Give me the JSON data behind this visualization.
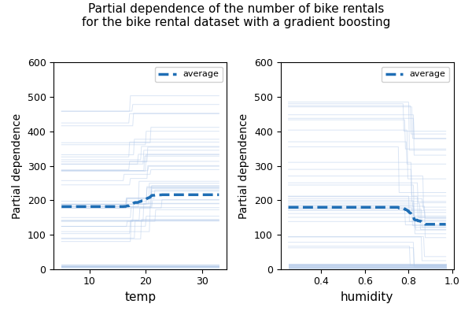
{
  "title": "Partial dependence of the number of bike rentals\nfor the bike rental dataset with a gradient boosting",
  "title_fontsize": 11,
  "ylabel": "Partial dependence",
  "xlabel_temp": "temp",
  "xlabel_humidity": "humidity",
  "temp_range": [
    5.0,
    33.0
  ],
  "humidity_range": [
    0.25,
    0.97
  ],
  "ylim": [
    0,
    600
  ],
  "line_color": "#aec6e8",
  "avg_color": "#1f6eb5",
  "avg_linewidth": 2.5,
  "line_alpha": 0.45,
  "line_linewidth": 0.7,
  "n_lines": 50,
  "seed": 7
}
